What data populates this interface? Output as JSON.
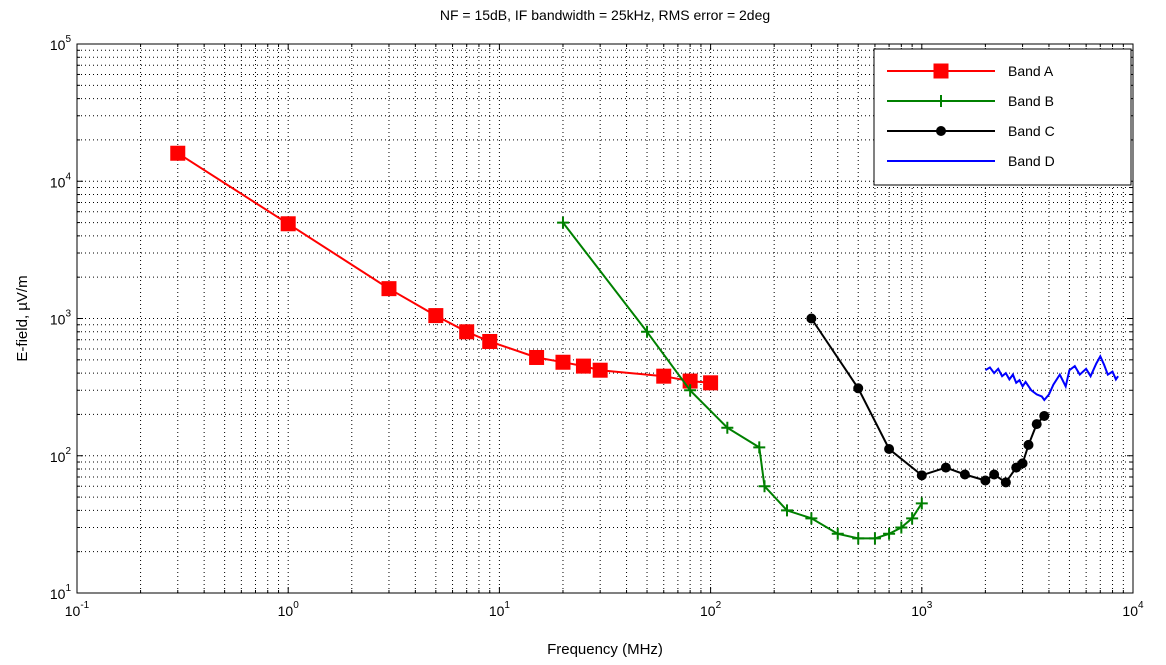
{
  "chart_data": {
    "type": "line",
    "title": "NF = 15dB, IF bandwidth = 25kHz, RMS error = 2deg",
    "xlabel": "Frequency (MHz)",
    "ylabel": "E-field, µV/m",
    "xscale": "log",
    "yscale": "log",
    "xlim": [
      0.1,
      10000
    ],
    "ylim": [
      10,
      100000
    ],
    "x_ticks": [
      {
        "base": "10",
        "exp": "-1"
      },
      {
        "base": "10",
        "exp": "0"
      },
      {
        "base": "10",
        "exp": "1"
      },
      {
        "base": "10",
        "exp": "2"
      },
      {
        "base": "10",
        "exp": "3"
      },
      {
        "base": "10",
        "exp": "4"
      }
    ],
    "y_ticks": [
      {
        "base": "10",
        "exp": "1"
      },
      {
        "base": "10",
        "exp": "2"
      },
      {
        "base": "10",
        "exp": "3"
      },
      {
        "base": "10",
        "exp": "4"
      },
      {
        "base": "10",
        "exp": "5"
      }
    ],
    "grid": true,
    "legend_position": "top-right",
    "series": [
      {
        "name": "Band A",
        "color": "#ff0000",
        "marker": "square",
        "points": [
          [
            0.3,
            16000
          ],
          [
            1,
            4900
          ],
          [
            3,
            1650
          ],
          [
            5,
            1050
          ],
          [
            7,
            800
          ],
          [
            9,
            680
          ],
          [
            15,
            520
          ],
          [
            20,
            480
          ],
          [
            25,
            450
          ],
          [
            30,
            420
          ],
          [
            60,
            380
          ],
          [
            80,
            350
          ],
          [
            100,
            340
          ]
        ]
      },
      {
        "name": "Band B",
        "color": "#008000",
        "marker": "plus",
        "points": [
          [
            20,
            5000
          ],
          [
            50,
            800
          ],
          [
            80,
            300
          ],
          [
            120,
            160
          ],
          [
            170,
            115
          ],
          [
            180,
            60
          ],
          [
            230,
            40
          ],
          [
            300,
            35
          ],
          [
            400,
            27
          ],
          [
            500,
            25
          ],
          [
            600,
            25
          ],
          [
            700,
            27
          ],
          [
            800,
            30
          ],
          [
            900,
            35
          ],
          [
            1000,
            45
          ]
        ]
      },
      {
        "name": "Band C",
        "color": "#000000",
        "marker": "circle",
        "points": [
          [
            300,
            1000
          ],
          [
            500,
            310
          ],
          [
            700,
            112
          ],
          [
            1000,
            72
          ],
          [
            1300,
            82
          ],
          [
            1600,
            73
          ],
          [
            2000,
            66
          ],
          [
            2200,
            73
          ],
          [
            2500,
            64
          ],
          [
            2800,
            82
          ],
          [
            3000,
            88
          ],
          [
            3200,
            120
          ],
          [
            3500,
            170
          ],
          [
            3800,
            195
          ]
        ]
      },
      {
        "name": "Band D",
        "color": "#0000ff",
        "marker": "none",
        "points": [
          [
            2000,
            420
          ],
          [
            2100,
            440
          ],
          [
            2200,
            400
          ],
          [
            2300,
            430
          ],
          [
            2400,
            380
          ],
          [
            2500,
            400
          ],
          [
            2600,
            360
          ],
          [
            2700,
            390
          ],
          [
            2800,
            340
          ],
          [
            2900,
            355
          ],
          [
            3000,
            320
          ],
          [
            3100,
            345
          ],
          [
            3300,
            300
          ],
          [
            3500,
            280
          ],
          [
            3700,
            270
          ],
          [
            3800,
            255
          ],
          [
            4000,
            280
          ],
          [
            4200,
            330
          ],
          [
            4500,
            390
          ],
          [
            4800,
            320
          ],
          [
            5000,
            420
          ],
          [
            5300,
            450
          ],
          [
            5600,
            390
          ],
          [
            6000,
            430
          ],
          [
            6300,
            380
          ],
          [
            6700,
            470
          ],
          [
            7000,
            530
          ],
          [
            7300,
            460
          ],
          [
            7600,
            390
          ],
          [
            8000,
            410
          ],
          [
            8300,
            360
          ],
          [
            8500,
            380
          ]
        ]
      }
    ]
  }
}
